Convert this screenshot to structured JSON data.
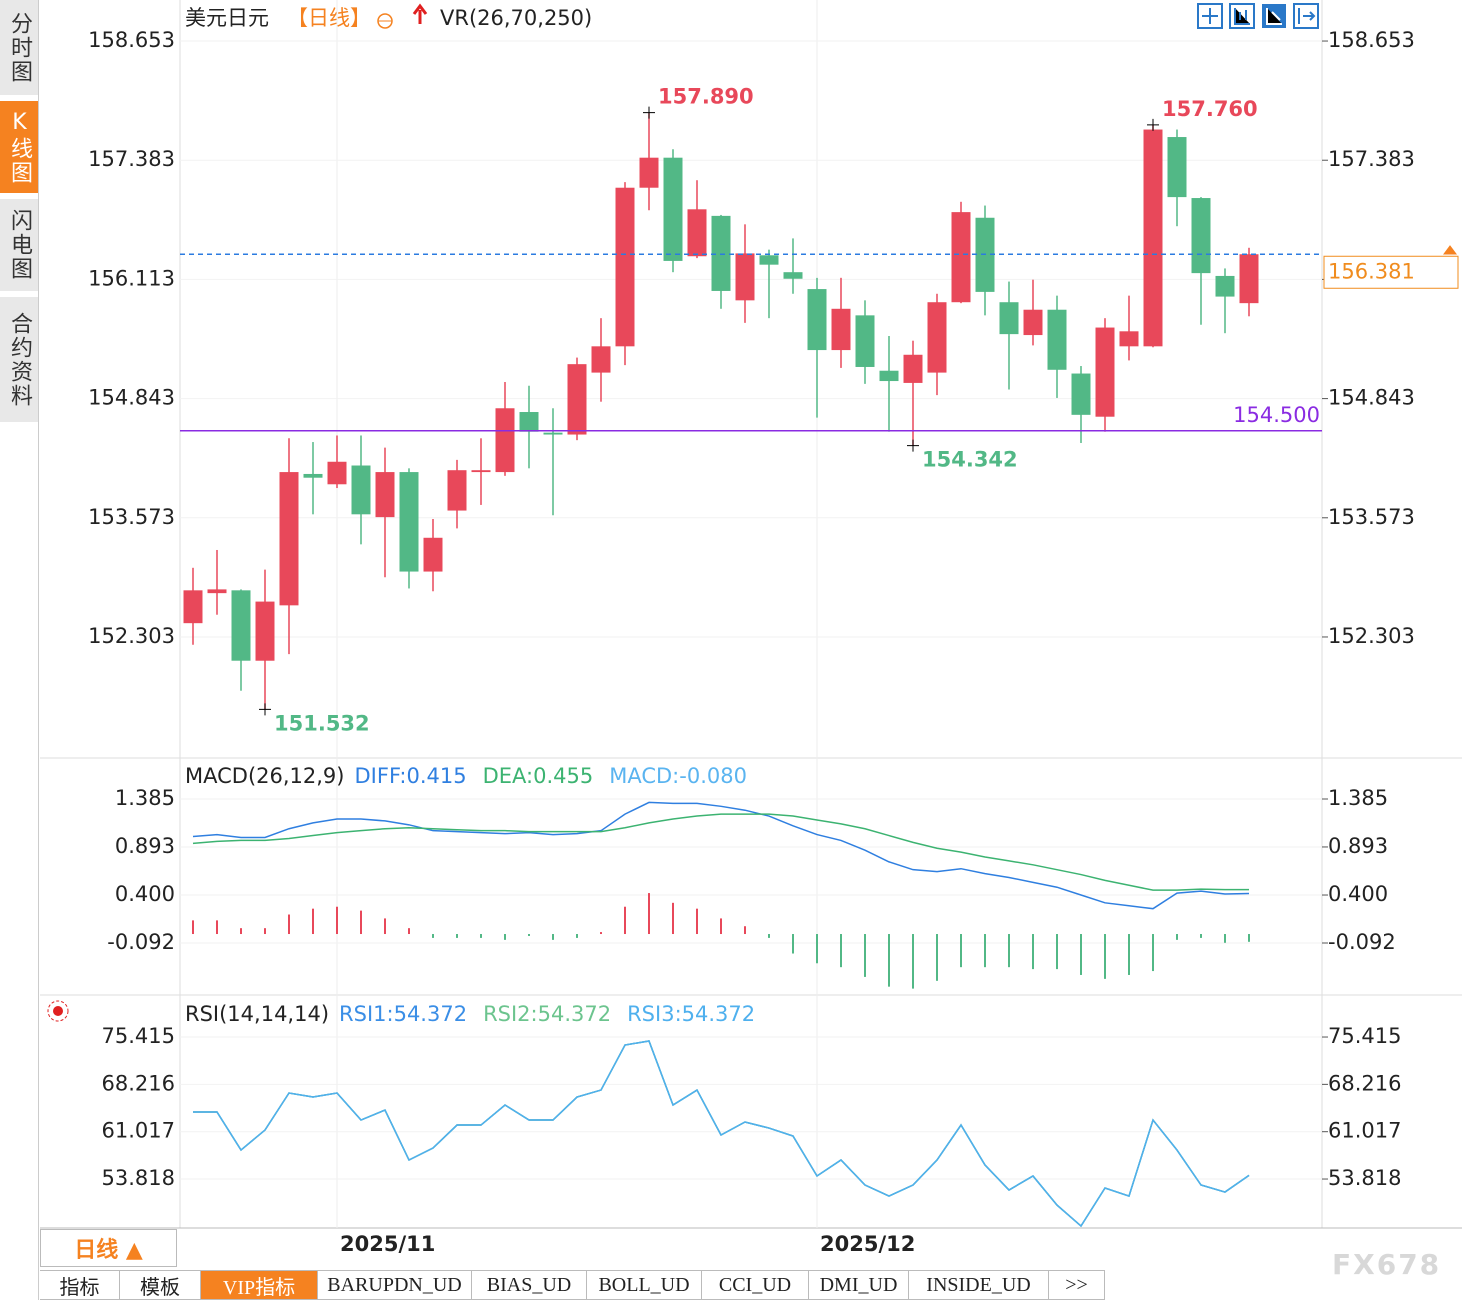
{
  "chart_data": [
    {
      "type": "candlestick",
      "title": "美元日元",
      "subtitle": "【日线】",
      "indicator": "VR(26,70,250)",
      "up_color": "#e8485a",
      "down_color": "#52b886",
      "categories": [
        null,
        null,
        null,
        null,
        null,
        null,
        "2025/11",
        null,
        null,
        null,
        null,
        null,
        null,
        null,
        null,
        null,
        null,
        null,
        null,
        null,
        null,
        null,
        null,
        null,
        null,
        null,
        "2025/12",
        null,
        null,
        null,
        null,
        null,
        null,
        null,
        null,
        null,
        null,
        null,
        null,
        null,
        null,
        null,
        null,
        null,
        null
      ],
      "open": [
        152.45,
        152.77,
        152.8,
        152.05,
        152.64,
        154.04,
        153.93,
        154.13,
        153.58,
        154.06,
        153.0,
        153.65,
        154.06,
        154.06,
        154.7,
        154.48,
        154.46,
        155.12,
        155.4,
        157.09,
        157.41,
        156.36,
        156.79,
        155.89,
        156.37,
        156.19,
        156.01,
        155.36,
        155.73,
        155.14,
        155.01,
        155.12,
        155.87,
        156.77,
        155.87,
        155.52,
        155.79,
        155.11,
        154.65,
        155.4,
        155.4,
        157.63,
        156.98,
        156.15,
        155.86
      ],
      "close": [
        152.8,
        152.81,
        152.05,
        152.68,
        154.06,
        154.0,
        154.17,
        153.61,
        154.06,
        153.0,
        153.36,
        154.08,
        154.08,
        154.74,
        154.49,
        154.46,
        155.21,
        155.4,
        157.09,
        157.41,
        156.31,
        156.86,
        155.99,
        156.39,
        156.27,
        156.12,
        155.36,
        155.8,
        155.18,
        155.03,
        155.31,
        155.87,
        156.83,
        155.98,
        155.53,
        155.79,
        155.15,
        154.67,
        155.6,
        155.56,
        157.71,
        156.99,
        156.18,
        155.93,
        156.381
      ],
      "high": [
        153.04,
        153.23,
        152.81,
        153.02,
        154.42,
        154.38,
        154.45,
        154.45,
        154.32,
        154.1,
        153.56,
        154.19,
        154.42,
        155.02,
        154.98,
        154.74,
        155.28,
        155.7,
        157.15,
        157.89,
        157.5,
        157.17,
        156.8,
        156.7,
        156.43,
        156.55,
        156.13,
        156.13,
        155.89,
        155.51,
        155.46,
        155.96,
        156.94,
        156.9,
        156.09,
        156.11,
        155.94,
        155.19,
        155.7,
        155.94,
        157.76,
        157.71,
        156.99,
        156.23,
        156.45
      ],
      "low": [
        152.22,
        152.54,
        151.73,
        151.532,
        152.12,
        153.61,
        153.89,
        153.29,
        152.94,
        152.82,
        152.79,
        153.46,
        153.71,
        154.02,
        154.1,
        153.6,
        154.4,
        154.81,
        155.2,
        156.85,
        156.19,
        156.34,
        155.8,
        155.65,
        155.7,
        155.96,
        154.64,
        155.17,
        155.0,
        154.49,
        154.342,
        154.88,
        155.86,
        155.73,
        154.94,
        155.41,
        154.85,
        154.37,
        154.49,
        155.25,
        155.39,
        156.68,
        155.63,
        155.54,
        155.72
      ],
      "annotations": [
        {
          "value": 157.89,
          "label": "157.890"
        },
        {
          "value": 157.76,
          "label": "157.760"
        },
        {
          "value": 151.532,
          "label": "151.532"
        },
        {
          "value": 154.342,
          "label": "154.342"
        }
      ],
      "hlines": [
        {
          "value": 154.5,
          "label": "154.500",
          "color": "#8a2be2",
          "style": "solid",
          "label_color": "#8a2be2"
        },
        {
          "value": 156.381,
          "label": "156.381",
          "color": "#2b7be0",
          "style": "dashed",
          "label_color": "#f08c1e"
        }
      ],
      "ylim": [
        151.024,
        159.037
      ],
      "yticks": [
        158.653,
        157.383,
        156.113,
        154.843,
        153.573,
        152.303
      ]
    },
    {
      "type": "line",
      "title": "MACD(26,12,9)",
      "series": [
        {
          "name": "DIFF:0.415",
          "color": "#2f7fe0",
          "values": [
            1.0,
            1.02,
            0.99,
            0.99,
            1.08,
            1.14,
            1.18,
            1.18,
            1.16,
            1.12,
            1.06,
            1.05,
            1.04,
            1.03,
            1.04,
            1.02,
            1.03,
            1.06,
            1.23,
            1.35,
            1.34,
            1.34,
            1.31,
            1.27,
            1.21,
            1.11,
            1.02,
            0.96,
            0.86,
            0.74,
            0.66,
            0.64,
            0.67,
            0.62,
            0.58,
            0.53,
            0.48,
            0.4,
            0.32,
            0.29,
            0.26,
            0.42,
            0.44,
            0.41,
            0.415
          ]
        },
        {
          "name": "DEA:0.455",
          "color": "#3cb371",
          "values": [
            0.93,
            0.95,
            0.96,
            0.96,
            0.98,
            1.01,
            1.04,
            1.06,
            1.08,
            1.09,
            1.08,
            1.07,
            1.06,
            1.06,
            1.05,
            1.05,
            1.05,
            1.05,
            1.09,
            1.14,
            1.18,
            1.21,
            1.23,
            1.23,
            1.23,
            1.21,
            1.17,
            1.13,
            1.08,
            1.01,
            0.94,
            0.88,
            0.84,
            0.79,
            0.75,
            0.71,
            0.66,
            0.61,
            0.55,
            0.5,
            0.45,
            0.45,
            0.46,
            0.455,
            0.455
          ]
        },
        {
          "name": "MACD:-0.080",
          "color": "#5ab4f0",
          "mark": "bar",
          "positive_color": "#e8485a",
          "negative_color": "#52b886",
          "values": [
            0.14,
            0.14,
            0.06,
            0.06,
            0.2,
            0.26,
            0.28,
            0.24,
            0.16,
            0.06,
            -0.04,
            -0.04,
            -0.04,
            -0.06,
            -0.02,
            -0.06,
            -0.04,
            0.02,
            0.28,
            0.42,
            0.32,
            0.26,
            0.16,
            0.08,
            -0.04,
            -0.2,
            -0.3,
            -0.34,
            -0.44,
            -0.54,
            -0.56,
            -0.48,
            -0.34,
            -0.34,
            -0.34,
            -0.36,
            -0.36,
            -0.42,
            -0.46,
            -0.42,
            -0.38,
            -0.06,
            -0.04,
            -0.09,
            -0.08
          ]
        }
      ],
      "ylim": [
        -0.605,
        1.785
      ],
      "yticks": [
        1.385,
        0.893,
        {
          "value": 0.4,
          "label": "0.400"
        },
        -0.092
      ]
    },
    {
      "type": "line",
      "title": "RSI(14,14,14)",
      "series": [
        {
          "name": "RSI1:54.372",
          "color": "#3a8ee6",
          "values": [
            64.01,
            64.01,
            58.23,
            61.27,
            66.9,
            66.29,
            66.9,
            62.79,
            64.31,
            56.71,
            58.53,
            62.03,
            62.03,
            65.07,
            62.79,
            62.79,
            66.29,
            67.35,
            74.2,
            74.81,
            65.07,
            67.35,
            60.51,
            62.49,
            61.57,
            60.36,
            54.28,
            56.71,
            52.91,
            51.23,
            52.91,
            56.71,
            62.03,
            55.95,
            52.15,
            54.28,
            49.86,
            46.67,
            52.45,
            51.23,
            62.79,
            58.23,
            52.91,
            51.84,
            54.372
          ]
        },
        {
          "name": "RSI2:54.372",
          "color": "#6cc48e",
          "values": [
            64.01,
            64.01,
            58.23,
            61.27,
            66.9,
            66.29,
            66.9,
            62.79,
            64.31,
            56.71,
            58.53,
            62.03,
            62.03,
            65.07,
            62.79,
            62.79,
            66.29,
            67.35,
            74.2,
            74.81,
            65.07,
            67.35,
            60.51,
            62.49,
            61.57,
            60.36,
            54.28,
            56.71,
            52.91,
            51.23,
            52.91,
            56.71,
            62.03,
            55.95,
            52.15,
            54.28,
            49.86,
            46.67,
            52.45,
            51.23,
            62.79,
            58.23,
            52.91,
            51.84,
            54.372
          ]
        },
        {
          "name": "RSI3:54.372",
          "color": "#4fb0ee",
          "values": [
            64.01,
            64.01,
            58.23,
            61.27,
            66.9,
            66.29,
            66.9,
            62.79,
            64.31,
            56.71,
            58.53,
            62.03,
            62.03,
            65.07,
            62.79,
            62.79,
            66.29,
            67.35,
            74.2,
            74.81,
            65.07,
            67.35,
            60.51,
            62.49,
            61.57,
            60.36,
            54.28,
            56.71,
            52.91,
            51.23,
            52.91,
            56.71,
            62.03,
            55.95,
            52.15,
            54.28,
            49.86,
            46.67,
            52.45,
            51.23,
            62.79,
            58.23,
            52.91,
            51.84,
            54.372
          ]
        }
      ],
      "ylim": [
        46.37,
        81.35
      ],
      "yticks": [
        75.415,
        68.216,
        61.017,
        53.818
      ]
    }
  ],
  "ui": {
    "side_tabs": [
      "分时图",
      "K线图",
      "闪电图",
      "合约资料"
    ],
    "active_side_tab": 1,
    "period_button": "日线 ▲",
    "bottom_tabs": [
      "指标",
      "模板",
      "VIP指标",
      "BARUPDN_UD",
      "BIAS_UD",
      "BOLL_UD",
      "CCI_UD",
      "DMI_UD",
      "INSIDE_UD",
      ">>"
    ],
    "active_bottom_tab": 2,
    "watermark": "FX678"
  }
}
